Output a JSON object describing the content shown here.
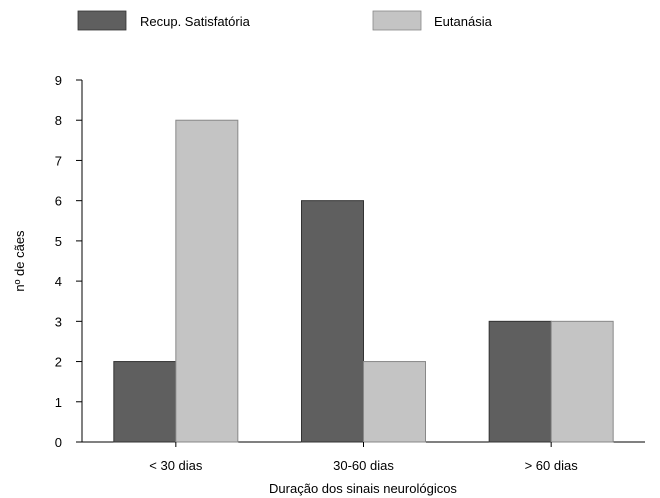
{
  "chart_data": {
    "type": "bar",
    "title": "",
    "xlabel": "Duração dos sinais neurológicos",
    "ylabel": "nº de cães",
    "categories": [
      "< 30 dias",
      "30-60 dias",
      "> 60 dias"
    ],
    "series": [
      {
        "name": "Recup. Satisfatória",
        "values": [
          2,
          6,
          3
        ],
        "color": "#5f5f5f"
      },
      {
        "name": "Eutanásia",
        "values": [
          8,
          2,
          3
        ],
        "color": "#c4c4c4"
      }
    ],
    "ylim": [
      0,
      9
    ],
    "yticks": [
      0,
      1,
      2,
      3,
      4,
      5,
      6,
      7,
      8,
      9
    ],
    "grid": false,
    "legend_position": "top"
  }
}
